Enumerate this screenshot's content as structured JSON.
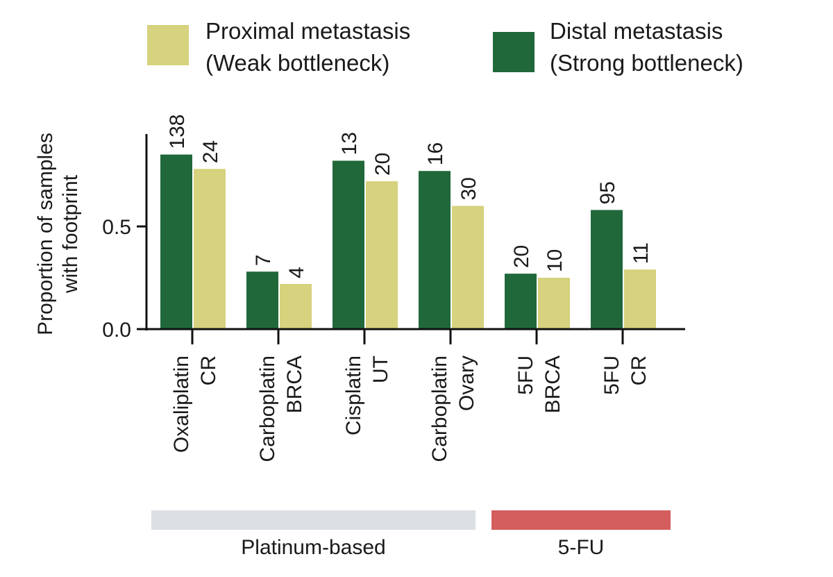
{
  "colors": {
    "proximal": "#d6d27d",
    "distal": "#20683a",
    "platinum_group": "#dcdfe3",
    "fu_group": "#d45d5d",
    "axis": "#111111"
  },
  "legend": [
    {
      "key": "proximal",
      "line1": "Proximal metastasis",
      "line2": "(Weak bottleneck)"
    },
    {
      "key": "distal",
      "line1": "Distal metastasis",
      "line2": "(Strong bottleneck)"
    }
  ],
  "groups": [
    {
      "label": "Platinum-based",
      "color_key": "platinum_group",
      "first": 0,
      "last": 3
    },
    {
      "label": "5-FU",
      "color_key": "fu_group",
      "first": 4,
      "last": 5
    }
  ],
  "chart_data": {
    "type": "bar",
    "ylabel_line1": "Proportion of samples",
    "ylabel_line2": "with footprint",
    "ylim": [
      0,
      0.95
    ],
    "yticks": [
      0.0,
      0.5
    ],
    "ytick_labels": [
      "0.0",
      "0.5"
    ],
    "categories": [
      {
        "line1": "Oxaliplatin",
        "line2": "CR"
      },
      {
        "line1": "Carboplatin",
        "line2": "BRCA"
      },
      {
        "line1": "Cisplatin",
        "line2": "UT"
      },
      {
        "line1": "Carboplatin",
        "line2": "Ovary"
      },
      {
        "line1": "5FU",
        "line2": "BRCA"
      },
      {
        "line1": "5FU",
        "line2": "CR"
      }
    ],
    "series": [
      {
        "name": "Distal metastasis (Strong bottleneck)",
        "color_key": "distal",
        "values": [
          0.85,
          0.28,
          0.82,
          0.77,
          0.27,
          0.58
        ],
        "labels": [
          "138",
          "7",
          "13",
          "16",
          "20",
          "95"
        ]
      },
      {
        "name": "Proximal metastasis (Weak bottleneck)",
        "color_key": "proximal",
        "values": [
          0.78,
          0.22,
          0.72,
          0.6,
          0.25,
          0.29
        ],
        "labels": [
          "24",
          "4",
          "20",
          "30",
          "10",
          "11"
        ]
      }
    ]
  }
}
